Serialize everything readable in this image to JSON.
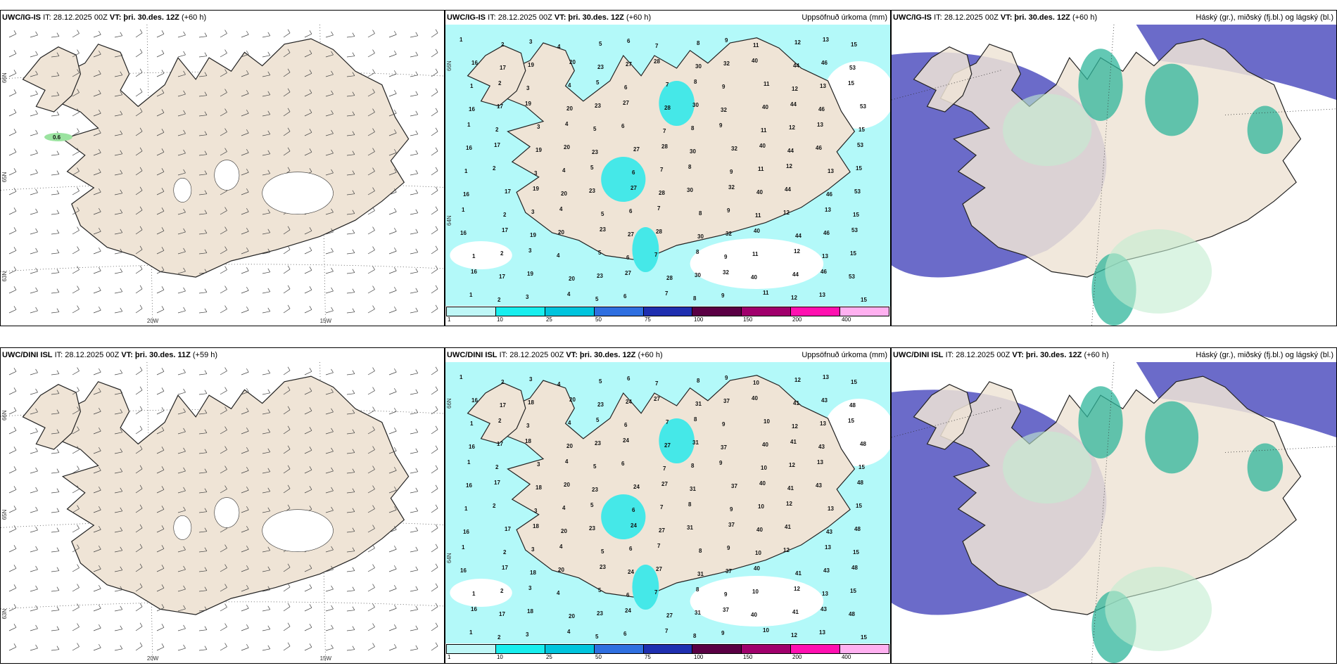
{
  "panels": [
    {
      "id": "wind-igis",
      "model": "UWC/IG-IS",
      "it": "IT: 28.12.2025 00Z",
      "vt_label": "VT:",
      "vt": "þri. 30.des. 12Z",
      "lead": "(+60 h)",
      "title": "",
      "kind": "wind",
      "lat_labels": [
        "66N",
        "65N",
        "63N"
      ],
      "lon_labels": [
        "20W",
        "15W"
      ],
      "values": [
        "0.6"
      ]
    },
    {
      "id": "precip-igis",
      "model": "UWC/IG-IS",
      "it": "IT: 28.12.2025 00Z",
      "vt_label": "VT:",
      "vt": "þri. 30.des. 12Z",
      "lead": "(+60 h)",
      "title": "Uppsöfnuð úrkoma (mm)",
      "kind": "precip",
      "lat_labels": [
        "66N",
        "64N"
      ],
      "values": [
        "1",
        "2",
        "3",
        "4",
        "5",
        "6",
        "7",
        "8",
        "9",
        "11",
        "12",
        "13",
        "15",
        "16",
        "17",
        "19",
        "20",
        "23",
        "27",
        "28",
        "30",
        "32",
        "40",
        "44",
        "46",
        "53"
      ]
    },
    {
      "id": "cloud-igis",
      "model": "UWC/IG-IS",
      "it": "IT: 28.12.2025 00Z",
      "vt_label": "VT:",
      "vt": "þri. 30.des. 12Z",
      "lead": "(+60 h)",
      "title": "Háský (gr.), miðský (fj.bl.) og lágský (bl.)",
      "kind": "cloud"
    },
    {
      "id": "wind-dini",
      "model": "UWC/DINI ISL",
      "it": "IT: 28.12.2025 00Z",
      "vt_label": "VT:",
      "vt": "þri. 30.des. 11Z",
      "lead": "(+59 h)",
      "title": "",
      "kind": "wind",
      "lat_labels": [
        "66N",
        "65N",
        "63N"
      ],
      "lon_labels": [
        "20W",
        "15W"
      ]
    },
    {
      "id": "precip-dini",
      "model": "UWC/DINI ISL",
      "it": "IT: 28.12.2025 00Z",
      "vt_label": "VT:",
      "vt": "þri. 30.des. 12Z",
      "lead": "(+60 h)",
      "title": "Uppsöfnuð úrkoma (mm)",
      "kind": "precip",
      "lat_labels": [
        "66N",
        "64N"
      ],
      "values": [
        "1",
        "2",
        "3",
        "4",
        "5",
        "6",
        "7",
        "8",
        "9",
        "10",
        "12",
        "13",
        "15",
        "16",
        "17",
        "18",
        "20",
        "23",
        "24",
        "27",
        "31",
        "37",
        "40",
        "41",
        "43",
        "48"
      ]
    },
    {
      "id": "cloud-dini",
      "model": "UWC/DINI ISL",
      "it": "IT: 28.12.2025 00Z",
      "vt_label": "VT:",
      "vt": "þri. 30.des. 12Z",
      "lead": "(+60 h)",
      "title": "Háský (gr.), miðský (fj.bl.) og lágský (bl.)",
      "kind": "cloud"
    }
  ],
  "precip_colorbar": {
    "ticks": [
      "1",
      "10",
      "25",
      "50",
      "75",
      "100",
      "150",
      "200",
      "400"
    ],
    "colors": [
      "#bff7f7",
      "#18eeee",
      "#00c4dd",
      "#2f6fe0",
      "#1f2fb0",
      "#5a0044",
      "#a0006c",
      "#ff10b0",
      "#ffb0f0"
    ]
  },
  "colors": {
    "land": "#efe4d6",
    "precip_light": "#b3f9f9",
    "precip_mid": "#45e8e8",
    "cloud_low": "#5e5ec4",
    "cloud_mid": "#2fb59b",
    "cloud_high": "#c3ecd0"
  }
}
